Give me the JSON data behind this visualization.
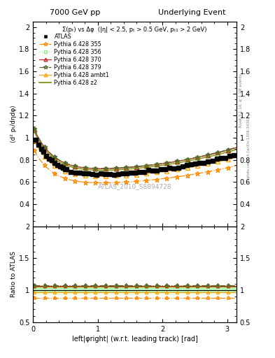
{
  "title_left": "7000 GeV pp",
  "title_right": "Underlying Event",
  "annotation": "ATLAS_2010_S8894728",
  "xlabel": "left|φright| (w.r.t. leading track) [rad]",
  "ylabel_main": "⟨d² pₜ/dηdφ⟩",
  "ylabel_ratio": "Ratio to ATLAS",
  "right_label_top": "Rivet 3.1.10, ≥ 3.1M events",
  "right_label_bottom": "mcplots.cern.ch [arXiv:1306.3436]",
  "subtitle": "Σ(pₜ) vs Δφ  (|η| < 2.5, pₜ > 0.5 GeV, pₜ₁ > 2 GeV)",
  "xlim": [
    0,
    3.14159
  ],
  "ylim_main": [
    0.2,
    2.05
  ],
  "ylim_ratio": [
    0.5,
    2.0
  ],
  "yticks_main": [
    0.4,
    0.6,
    0.8,
    1.0,
    1.2,
    1.4,
    1.6,
    1.8,
    2.0
  ],
  "yticks_ratio": [
    0.5,
    1.0,
    1.5,
    2.0
  ],
  "xticks": [
    0,
    1,
    2,
    3
  ],
  "series": [
    {
      "label": "ATLAS",
      "color": "#000000",
      "marker": "s",
      "markersize": 4,
      "linestyle": "none",
      "filled": true
    },
    {
      "label": "Pythia 6.428 355",
      "color": "#ff8c00",
      "marker": "*",
      "markersize": 5,
      "linestyle": "-.",
      "filled": false
    },
    {
      "label": "Pythia 6.428 356",
      "color": "#90ee90",
      "marker": "s",
      "markersize": 4,
      "linestyle": ":",
      "filled": false
    },
    {
      "label": "Pythia 6.428 370",
      "color": "#cc2222",
      "marker": "^",
      "markersize": 4,
      "linestyle": "-",
      "filled": false
    },
    {
      "label": "Pythia 6.428 379",
      "color": "#556b2f",
      "marker": "*",
      "markersize": 5,
      "linestyle": "-.",
      "filled": false
    },
    {
      "label": "Pythia 6.428 ambt1",
      "color": "#ffa500",
      "marker": "^",
      "markersize": 4,
      "linestyle": "-",
      "filled": false
    },
    {
      "label": "Pythia 6.428 z2",
      "color": "#808000",
      "marker": "none",
      "markersize": 0,
      "linestyle": "-",
      "filled": false
    }
  ]
}
